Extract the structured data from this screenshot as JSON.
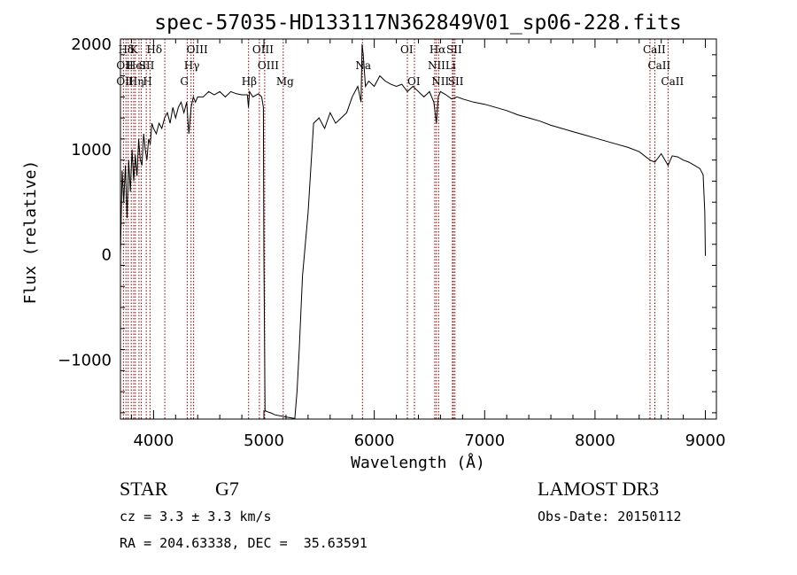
{
  "chart_data": {
    "type": "line",
    "title": "spec-57035-HD133117N362849V01_sp06-228.fits",
    "xlabel": "Wavelength (Å)",
    "ylabel": "Flux (relative)",
    "xlim": [
      3700,
      9100
    ],
    "ylim": [
      -1560,
      2050
    ],
    "x_ticks": [
      4000,
      5000,
      6000,
      7000,
      8000,
      9000
    ],
    "y_ticks": [
      -1000,
      0,
      1000,
      2000
    ],
    "x_tick_labels": [
      "4000",
      "5000",
      "6000",
      "7000",
      "8000",
      "9000"
    ],
    "y_tick_labels": [
      "−1000",
      "0",
      "1000",
      "2000"
    ],
    "line_color": "#000000",
    "marker_color": "#8b0000",
    "spectrum": {
      "x": [
        3700,
        3715,
        3730,
        3745,
        3760,
        3775,
        3790,
        3805,
        3820,
        3835,
        3850,
        3865,
        3880,
        3895,
        3910,
        3925,
        3940,
        3955,
        3970,
        3985,
        4000,
        4025,
        4050,
        4075,
        4100,
        4125,
        4150,
        4175,
        4200,
        4225,
        4250,
        4275,
        4300,
        4320,
        4340,
        4360,
        4380,
        4400,
        4450,
        4500,
        4550,
        4600,
        4650,
        4700,
        4750,
        4800,
        4850,
        4860,
        4870,
        4900,
        4950,
        4980,
        4995,
        5000,
        5010,
        5030,
        5060,
        5100,
        5200,
        5280,
        5300,
        5320,
        5350,
        5400,
        5450,
        5500,
        5550,
        5600,
        5650,
        5700,
        5750,
        5800,
        5850,
        5880,
        5890,
        5900,
        5920,
        5950,
        6000,
        6050,
        6100,
        6150,
        6200,
        6250,
        6300,
        6350,
        6400,
        6450,
        6500,
        6540,
        6563,
        6580,
        6600,
        6650,
        6700,
        6750,
        6800,
        6900,
        7000,
        7100,
        7200,
        7300,
        7400,
        7500,
        7600,
        7700,
        7800,
        7900,
        8000,
        8100,
        8200,
        8300,
        8400,
        8498,
        8542,
        8600,
        8662,
        8700,
        8750,
        8800,
        8850,
        8900,
        8950,
        8980,
        8995,
        9000
      ],
      "y": [
        0,
        800,
        500,
        850,
        350,
        900,
        600,
        1000,
        700,
        950,
        750,
        1100,
        900,
        850,
        1150,
        1000,
        900,
        1100,
        1050,
        1250,
        1200,
        1150,
        1250,
        1200,
        1300,
        1350,
        1250,
        1400,
        1300,
        1400,
        1450,
        1350,
        1450,
        1150,
        1400,
        1500,
        1450,
        1500,
        1500,
        1550,
        1520,
        1550,
        1500,
        1550,
        1530,
        1520,
        1520,
        1400,
        1550,
        1500,
        1530,
        1500,
        1400,
        0,
        -1480,
        -1490,
        -1500,
        -1520,
        -1540,
        -1555,
        -1300,
        -900,
        -200,
        400,
        1250,
        1300,
        1200,
        1350,
        1250,
        1300,
        1350,
        1500,
        1600,
        1450,
        2000,
        1900,
        1600,
        1650,
        1600,
        1700,
        1650,
        1620,
        1600,
        1620,
        1550,
        1600,
        1550,
        1500,
        1550,
        1450,
        1250,
        1500,
        1550,
        1520,
        1480,
        1500,
        1480,
        1450,
        1430,
        1400,
        1370,
        1330,
        1300,
        1270,
        1230,
        1200,
        1170,
        1140,
        1110,
        1080,
        1050,
        1020,
        980,
        900,
        880,
        960,
        850,
        940,
        930,
        900,
        880,
        850,
        820,
        760,
        400,
        -10
      ]
    },
    "spectral_lines": [
      {
        "label": "Hδ",
        "x": 3745,
        "row": 0
      },
      {
        "label": "K",
        "x": 3850,
        "row": 0
      },
      {
        "label": "Hδ",
        "x": 4000,
        "row": 0
      },
      {
        "label": "OIII",
        "x": 4363,
        "row": 0
      },
      {
        "label": "OIII",
        "x": 4959,
        "row": 0
      },
      {
        "label": "OI",
        "x": 6300,
        "row": 0
      },
      {
        "label": "Hα",
        "x": 6563,
        "row": 0
      },
      {
        "label": "SII",
        "x": 6717,
        "row": 0
      },
      {
        "label": "CaII",
        "x": 8498,
        "row": 0
      },
      {
        "label": "OII",
        "x": 3727,
        "row": 1
      },
      {
        "label": "HeI",
        "x": 3820,
        "row": 1
      },
      {
        "label": "SII",
        "x": 3930,
        "row": 1
      },
      {
        "label": "Hγ",
        "x": 4340,
        "row": 1
      },
      {
        "label": "OIII",
        "x": 5007,
        "row": 1
      },
      {
        "label": "Na",
        "x": 5893,
        "row": 1
      },
      {
        "label": "NII",
        "x": 6548,
        "row": 1
      },
      {
        "label": "Li",
        "x": 6708,
        "row": 1
      },
      {
        "label": "CaII",
        "x": 8542,
        "row": 1
      },
      {
        "label": "OII",
        "x": 3727,
        "row": 2
      },
      {
        "label": "Hη",
        "x": 3835,
        "row": 2
      },
      {
        "label": "H",
        "x": 3968,
        "row": 2
      },
      {
        "label": "G",
        "x": 4305,
        "row": 2
      },
      {
        "label": "Hβ",
        "x": 4861,
        "row": 2
      },
      {
        "label": "Mg",
        "x": 5175,
        "row": 2
      },
      {
        "label": "OI",
        "x": 6364,
        "row": 2
      },
      {
        "label": "NII",
        "x": 6583,
        "row": 2
      },
      {
        "label": "SII",
        "x": 6731,
        "row": 2
      },
      {
        "label": "CaII",
        "x": 8662,
        "row": 2
      }
    ],
    "marker_lines_x": [
      3727,
      3750,
      3770,
      3798,
      3820,
      3835,
      3868,
      3889,
      3934,
      3968,
      4102,
      4305,
      4340,
      4363,
      4861,
      4959,
      5007,
      5175,
      5893,
      6300,
      6364,
      6548,
      6563,
      6583,
      6708,
      6717,
      6731,
      8498,
      8542,
      8662
    ]
  },
  "info": {
    "object_class": "STAR",
    "subclass": "G7",
    "survey": "LAMOST DR3",
    "cz": "cz = 3.3 ± 3.3 km/s",
    "obs_date": "Obs-Date: 20150112",
    "coords": "RA = 204.63338, DEC =  35.63591"
  }
}
